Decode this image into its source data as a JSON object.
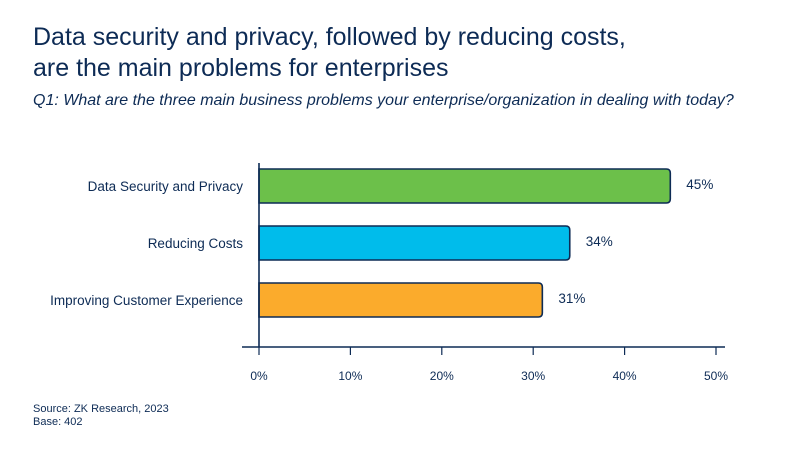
{
  "title_line1": "Data security and privacy, followed by reducing costs,",
  "title_line2": "are the main problems for enterprises",
  "subtitle": "Q1: What are the three main business problems your enterprise/organization in dealing with today?",
  "footer": {
    "source": "Source: ZK Research, 2023",
    "base": "Base: 402"
  },
  "chart_data": {
    "type": "bar",
    "orientation": "horizontal",
    "categories": [
      "Data Security and Privacy",
      "Reducing Costs",
      "Improving Customer Experience"
    ],
    "values": [
      45,
      34,
      31
    ],
    "value_labels": [
      "45%",
      "34%",
      "31%"
    ],
    "colors": [
      "#6cc04a",
      "#00bceb",
      "#fbab2c"
    ],
    "xlim": [
      0,
      50
    ],
    "ticks": [
      0,
      10,
      20,
      30,
      40,
      50
    ],
    "tick_labels": [
      "0%",
      "10%",
      "20%",
      "30%",
      "40%",
      "50%"
    ],
    "grid": false,
    "legend": "none"
  }
}
